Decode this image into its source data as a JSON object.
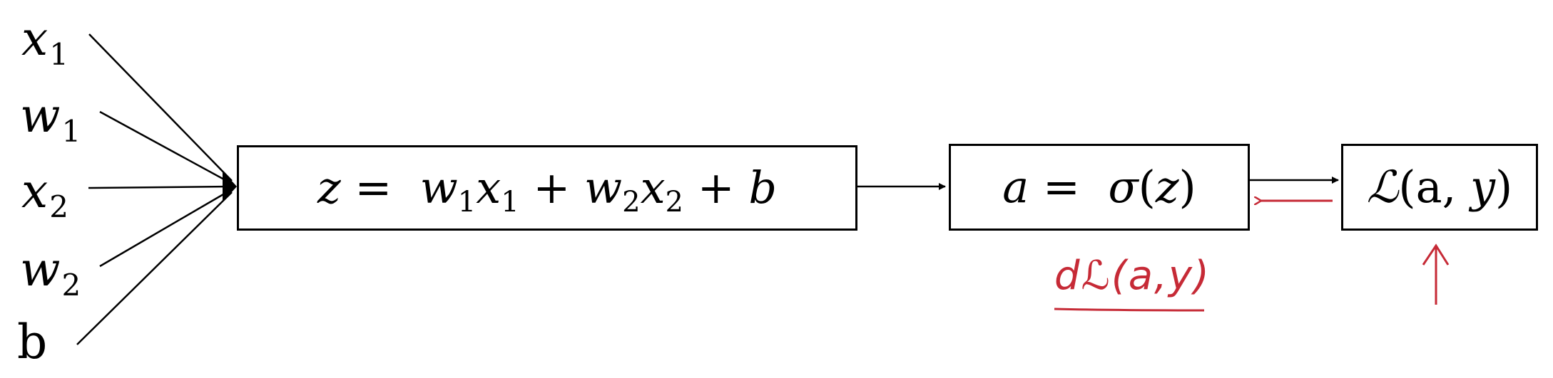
{
  "inputs": {
    "x1": {
      "base": "x",
      "sub": "1"
    },
    "w1": {
      "base": "w",
      "sub": "1"
    },
    "x2": {
      "base": "x",
      "sub": "2"
    },
    "w2": {
      "base": "w",
      "sub": "2"
    },
    "b": "b"
  },
  "nodes": {
    "linear": {
      "z": "z",
      "eq": " = ",
      "w1": "w",
      "w1_sub": "1",
      "x1": "x",
      "x1_sub": "1",
      "plus1": " + ",
      "w2": "w",
      "w2_sub": "2",
      "x2": "x",
      "x2_sub": "2",
      "plus2": " + ",
      "b": "b"
    },
    "activation": {
      "a": "a",
      "eq": " = ",
      "sigma": "σ",
      "open": "(",
      "z": "z",
      "close": ")"
    },
    "loss": {
      "L": "ℒ",
      "open": "(",
      "a": "a",
      "comma": ", ",
      "y": "y",
      "close": ")"
    }
  },
  "annotations": {
    "derivative": "dℒ(a,y)",
    "annotation_color": "#c62a36"
  },
  "colors": {
    "line": "#000000",
    "annotation": "#c62a36",
    "background": "#ffffff"
  }
}
